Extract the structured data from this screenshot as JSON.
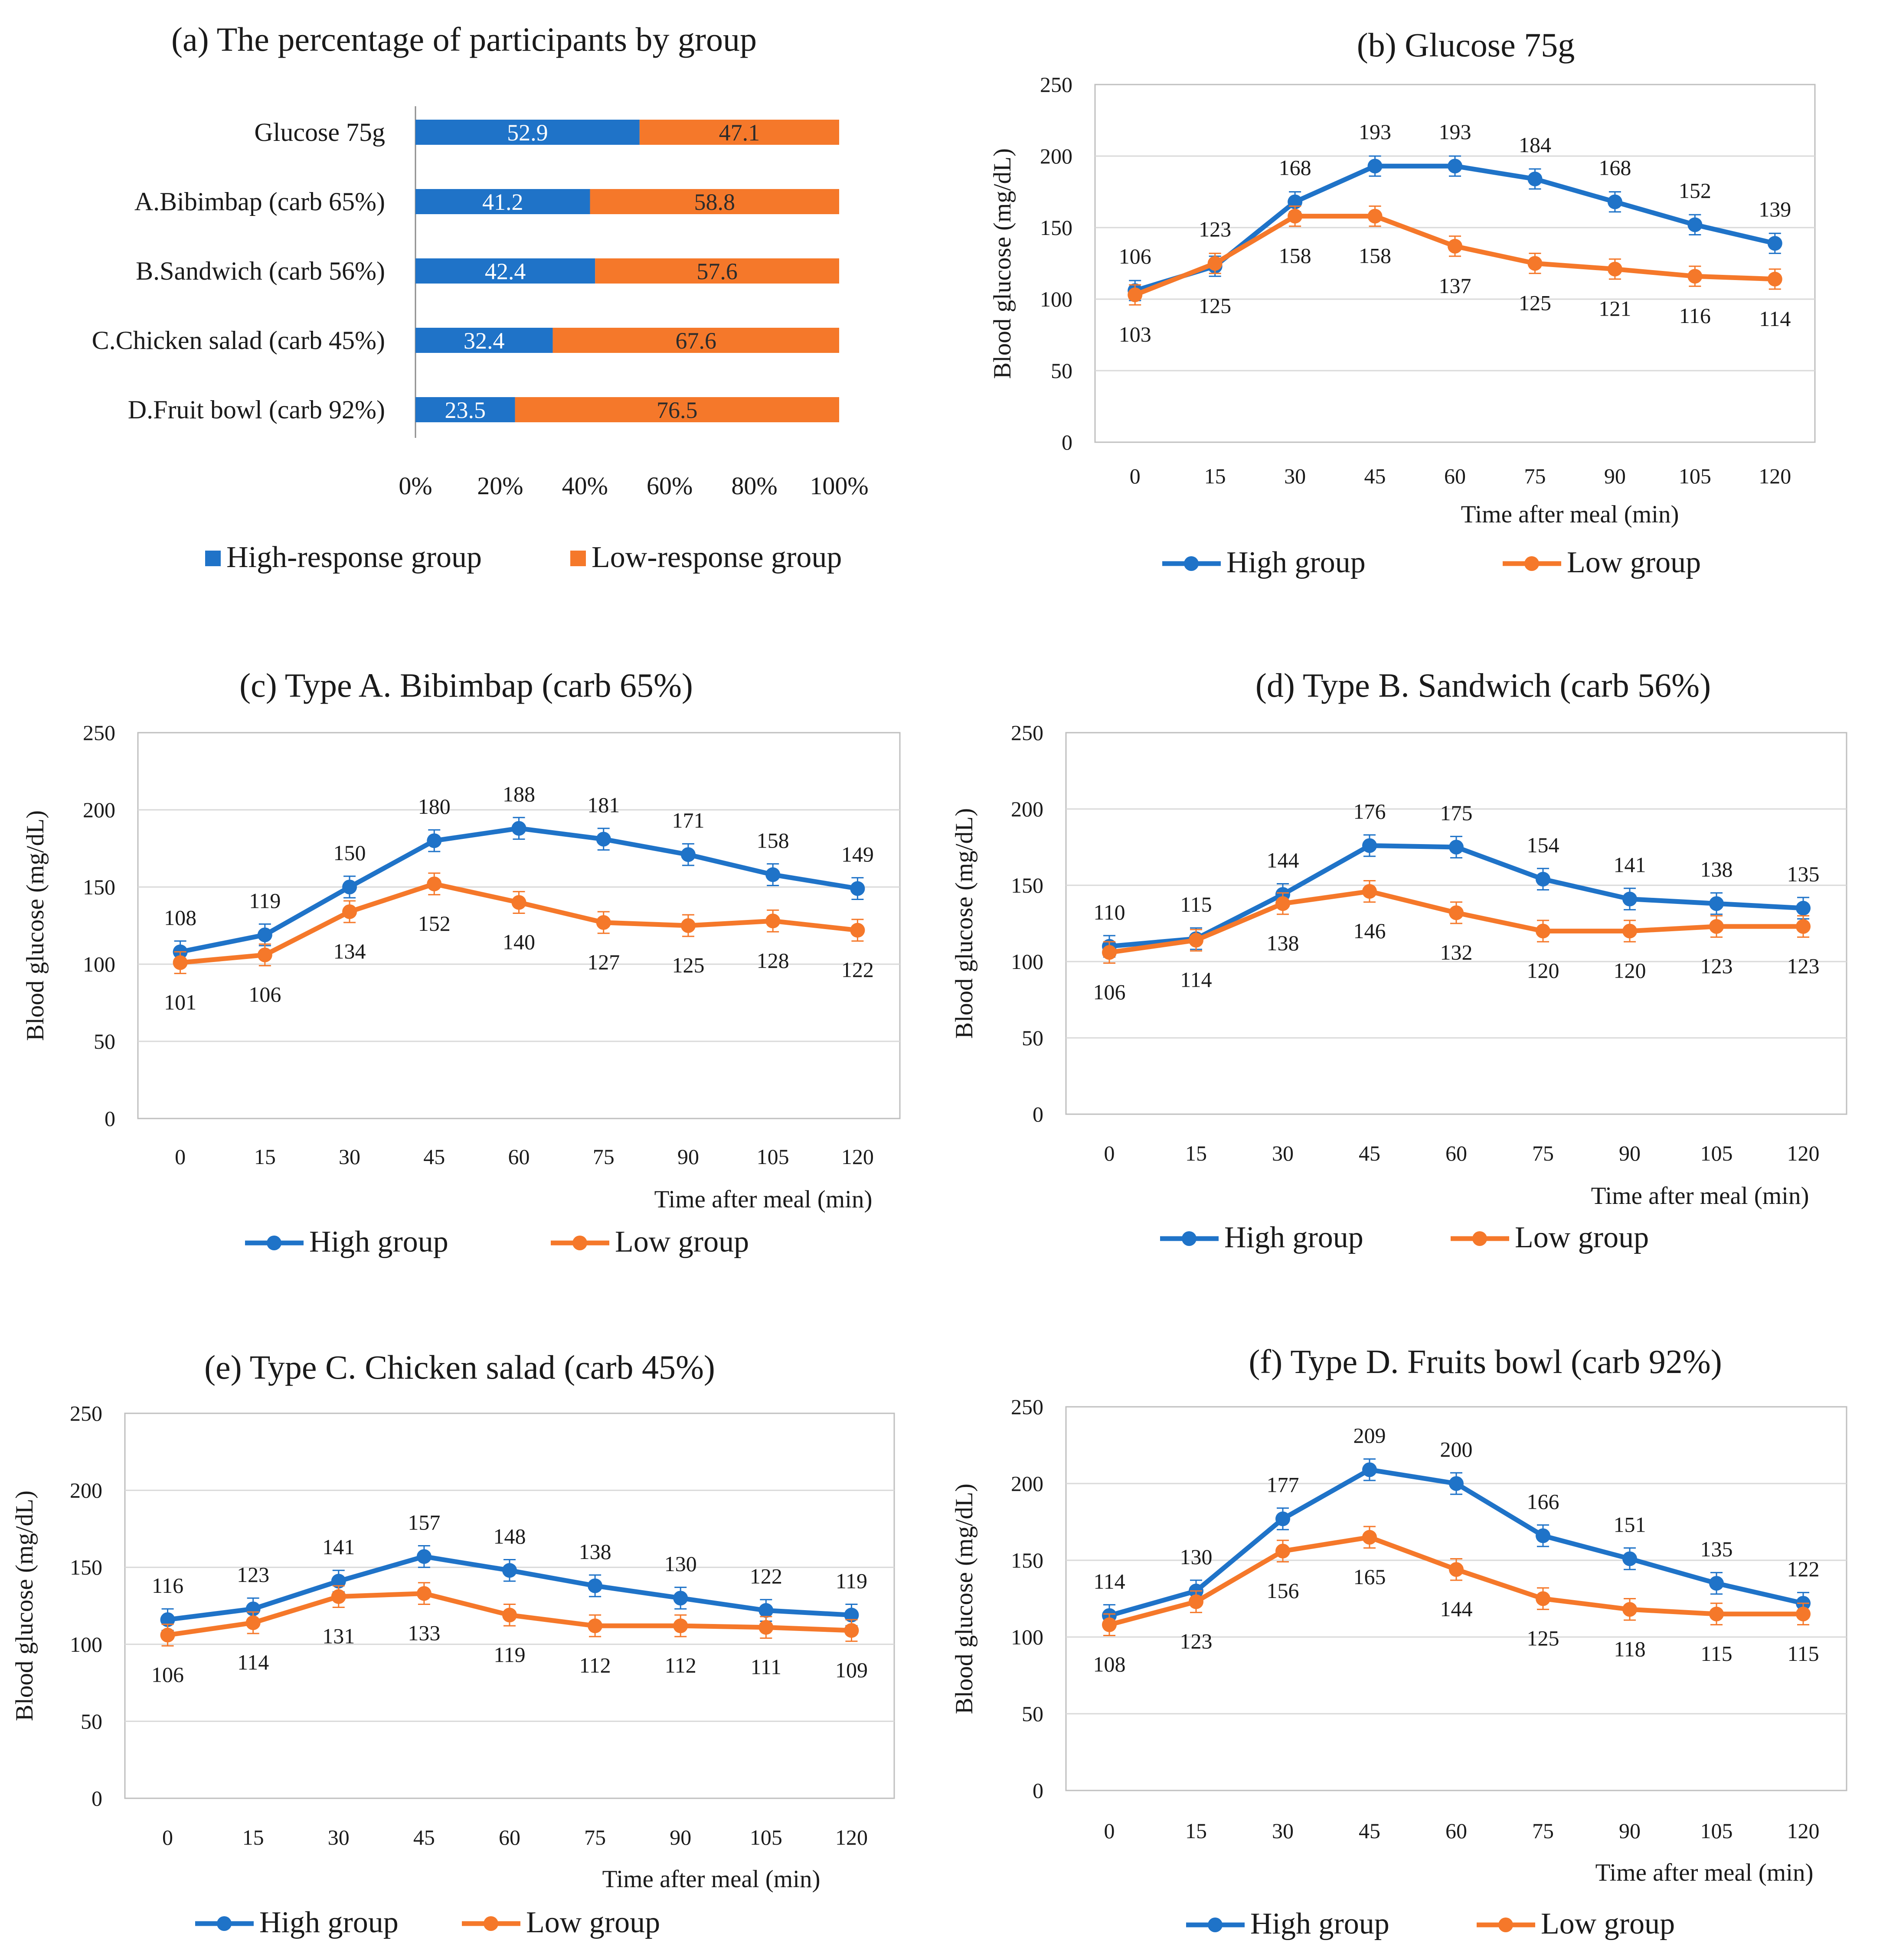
{
  "colors": {
    "high": "#1f73c8",
    "low": "#f5782a",
    "grid": "#d9d9d9",
    "frame": "#bfbfbf",
    "axis_line": "#8c8c8c"
  },
  "chart_data": [
    {
      "type": "bar",
      "id": "a",
      "title": "(a) The percentage of participants by group",
      "categories": [
        "Glucose 75g",
        "A.Bibimbap (carb 65%)",
        "B.Sandwich (carb 56%)",
        "C.Chicken salad (carb 45%)",
        "D.Fruit bowl (carb 92%)"
      ],
      "series": [
        {
          "name": "High-response group",
          "values": [
            52.9,
            41.2,
            42.4,
            32.4,
            23.5
          ]
        },
        {
          "name": "Low-response group",
          "values": [
            47.1,
            58.8,
            57.6,
            67.6,
            76.5
          ]
        }
      ],
      "stacked": true,
      "orientation": "horizontal",
      "xticks": [
        "0%",
        "20%",
        "40%",
        "60%",
        "80%",
        "100%"
      ],
      "xlim": [
        0,
        100
      ],
      "legend": "bottom"
    },
    {
      "type": "line",
      "id": "b",
      "title": "(b) Glucose 75g",
      "x": [
        "0",
        "15",
        "30",
        "45",
        "60",
        "75",
        "90",
        "105",
        "120"
      ],
      "ylabel": "Blood glucose (mg/dL)",
      "xlabel": "Time after meal (min)",
      "ylim": [
        0,
        250
      ],
      "yticks": [
        "0",
        "50",
        "100",
        "150",
        "200",
        "250"
      ],
      "series": [
        {
          "name": "High group",
          "values": [
            106,
            123,
            168,
            193,
            193,
            184,
            168,
            152,
            139
          ]
        },
        {
          "name": "Low group",
          "values": [
            103,
            125,
            158,
            158,
            137,
            125,
            121,
            116,
            114
          ]
        }
      ],
      "legend": "bottom"
    },
    {
      "type": "line",
      "id": "c",
      "title": "(c) Type A. Bibimbap (carb 65%)",
      "x": [
        "0",
        "15",
        "30",
        "45",
        "60",
        "75",
        "90",
        "105",
        "120"
      ],
      "ylabel": "Blood glucose (mg/dL)",
      "xlabel": "Time after meal (min)",
      "ylim": [
        0,
        250
      ],
      "yticks": [
        "0",
        "50",
        "100",
        "150",
        "200",
        "250"
      ],
      "series": [
        {
          "name": "High group",
          "values": [
            108,
            119,
            150,
            180,
            188,
            181,
            171,
            158,
            149
          ]
        },
        {
          "name": "Low group",
          "values": [
            101,
            106,
            134,
            152,
            140,
            127,
            125,
            128,
            122
          ]
        }
      ],
      "legend": "bottom"
    },
    {
      "type": "line",
      "id": "d",
      "title": "(d) Type B. Sandwich (carb 56%)",
      "x": [
        "0",
        "15",
        "30",
        "45",
        "60",
        "75",
        "90",
        "105",
        "120"
      ],
      "ylabel": "Blood glucose (mg/dL)",
      "xlabel": "Time after meal (min)",
      "ylim": [
        0,
        250
      ],
      "yticks": [
        "0",
        "50",
        "100",
        "150",
        "200",
        "250"
      ],
      "series": [
        {
          "name": "High group",
          "values": [
            110,
            115,
            144,
            176,
            175,
            154,
            141,
            138,
            135
          ]
        },
        {
          "name": "Low group",
          "values": [
            106,
            114,
            138,
            146,
            132,
            120,
            120,
            123,
            123
          ]
        }
      ],
      "legend": "bottom"
    },
    {
      "type": "line",
      "id": "e",
      "title": "(e) Type C. Chicken salad (carb 45%)",
      "x": [
        "0",
        "15",
        "30",
        "45",
        "60",
        "75",
        "90",
        "105",
        "120"
      ],
      "ylabel": "Blood glucose (mg/dL)",
      "xlabel": "Time after meal (min)",
      "ylim": [
        0,
        250
      ],
      "yticks": [
        "0",
        "50",
        "100",
        "150",
        "200",
        "250"
      ],
      "series": [
        {
          "name": "High group",
          "values": [
            116,
            123,
            141,
            157,
            148,
            138,
            130,
            122,
            119
          ]
        },
        {
          "name": "Low group",
          "values": [
            106,
            114,
            131,
            133,
            119,
            112,
            112,
            111,
            109
          ]
        }
      ],
      "legend": "bottom"
    },
    {
      "type": "line",
      "id": "f",
      "title": "(f) Type D. Fruits bowl (carb 92%)",
      "x": [
        "0",
        "15",
        "30",
        "45",
        "60",
        "75",
        "90",
        "105",
        "120"
      ],
      "ylabel": "Blood glucose (mg/dL)",
      "xlabel": "Time after meal (min)",
      "ylim": [
        0,
        250
      ],
      "yticks": [
        "0",
        "50",
        "100",
        "150",
        "200",
        "250"
      ],
      "series": [
        {
          "name": "High group",
          "values": [
            114,
            130,
            177,
            209,
            200,
            166,
            151,
            135,
            122
          ]
        },
        {
          "name": "Low group",
          "values": [
            108,
            123,
            156,
            165,
            144,
            125,
            118,
            115,
            115
          ]
        }
      ],
      "legend": "bottom"
    }
  ]
}
